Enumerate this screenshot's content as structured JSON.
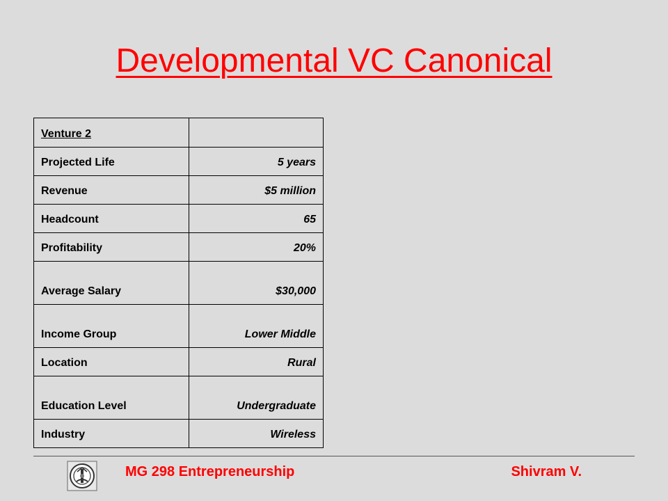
{
  "slide": {
    "title": "Developmental VC Canonical"
  },
  "table": {
    "rows": [
      {
        "label": "Venture 2",
        "value": ""
      },
      {
        "label": "Projected Life",
        "value": "5 years"
      },
      {
        "label": "Revenue",
        "value": "$5 million"
      },
      {
        "label": "Headcount",
        "value": "65"
      },
      {
        "label": "Profitability",
        "value": "20%"
      },
      {
        "label": "Average Salary",
        "value": "$30,000"
      },
      {
        "label": "Income Group",
        "value": "Lower Middle"
      },
      {
        "label": "Location",
        "value": "Rural"
      },
      {
        "label": "Education Level",
        "value": "Undergraduate"
      },
      {
        "label": "Industry",
        "value": "Wireless"
      }
    ]
  },
  "footer": {
    "course": "MG 298 Entrepreneurship",
    "author": "Shivram V.",
    "logo_icon": "institute-crest-icon"
  },
  "colors": {
    "accent": "#ff0000",
    "background": "#dcdcdc"
  }
}
